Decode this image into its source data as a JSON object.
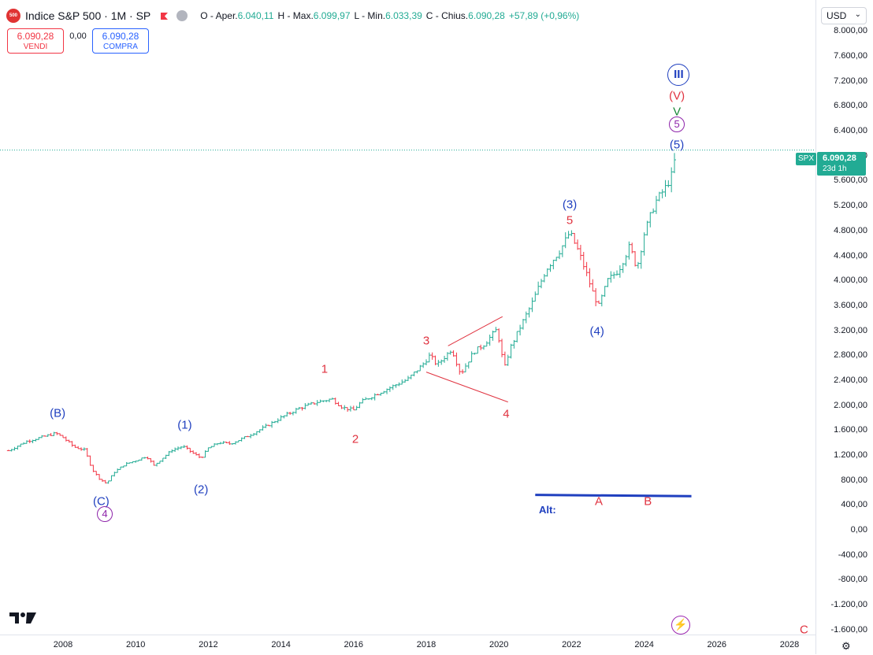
{
  "header": {
    "logo_text": "500",
    "title": "Indice S&P 500 · 1M · SP",
    "ohlc": [
      {
        "label": "O - Aper.",
        "value": "6.040,11"
      },
      {
        "label": "H - Max.",
        "value": "6.099,97"
      },
      {
        "label": "L - Min.",
        "value": "6.033,39"
      },
      {
        "label": "C - Chius.",
        "value": "6.090,28"
      }
    ],
    "change": "+57,89 (+0,96%)",
    "colors": {
      "up": "#22ab94",
      "down": "#f23645",
      "text": "#131722"
    }
  },
  "trade": {
    "sell_price": "6.090,28",
    "sell_label": "VENDI",
    "spread": "0,00",
    "buy_price": "6.090,28",
    "buy_label": "COMPRA"
  },
  "price_axis": {
    "currency": "USD",
    "ticks": [
      "8.000,00",
      "7.600,00",
      "7.200,00",
      "6.800,00",
      "6.400,00",
      "6.000,00",
      "5.600,00",
      "5.200,00",
      "4.800,00",
      "4.400,00",
      "4.000,00",
      "3.600,00",
      "3.200,00",
      "2.800,00",
      "2.400,00",
      "2.000,00",
      "1.600,00",
      "1.200,00",
      "800,00",
      "400,00",
      "0,00",
      "-400,00",
      "-800,00",
      "-1.200,00",
      "-1.600,00"
    ],
    "ticker_tag": "SPX",
    "last_price": "6.090,28",
    "countdown": "23d 1h"
  },
  "time_axis": {
    "ticks": [
      "2008",
      "2010",
      "2012",
      "2014",
      "2016",
      "2018",
      "2020",
      "2022",
      "2024",
      "2026",
      "2028"
    ]
  },
  "chart_data": {
    "type": "bar",
    "description_kind": "monthly OHLC price bars",
    "x_range": [
      2006.5,
      2028.8
    ],
    "ylim": [
      -1700,
      8300
    ],
    "close_series": [
      [
        2006.5,
        1270
      ],
      [
        2007.0,
        1420
      ],
      [
        2007.5,
        1500
      ],
      [
        2007.8,
        1550
      ],
      [
        2008.0,
        1480
      ],
      [
        2008.3,
        1330
      ],
      [
        2008.6,
        1280
      ],
      [
        2008.8,
        970
      ],
      [
        2009.0,
        820
      ],
      [
        2009.2,
        740
      ],
      [
        2009.4,
        920
      ],
      [
        2009.7,
        1050
      ],
      [
        2010.0,
        1110
      ],
      [
        2010.3,
        1180
      ],
      [
        2010.5,
        1030
      ],
      [
        2010.8,
        1180
      ],
      [
        2011.0,
        1280
      ],
      [
        2011.3,
        1340
      ],
      [
        2011.6,
        1220
      ],
      [
        2011.8,
        1150
      ],
      [
        2012.0,
        1310
      ],
      [
        2012.3,
        1400
      ],
      [
        2012.6,
        1380
      ],
      [
        2013.0,
        1480
      ],
      [
        2013.5,
        1630
      ],
      [
        2014.0,
        1800
      ],
      [
        2014.5,
        1950
      ],
      [
        2015.0,
        2050
      ],
      [
        2015.4,
        2100
      ],
      [
        2015.7,
        1960
      ],
      [
        2016.0,
        1920
      ],
      [
        2016.2,
        2050
      ],
      [
        2016.6,
        2170
      ],
      [
        2017.0,
        2280
      ],
      [
        2017.5,
        2420
      ],
      [
        2017.9,
        2650
      ],
      [
        2018.1,
        2800
      ],
      [
        2018.3,
        2640
      ],
      [
        2018.7,
        2900
      ],
      [
        2018.95,
        2500
      ],
      [
        2019.3,
        2850
      ],
      [
        2019.6,
        2980
      ],
      [
        2019.95,
        3220
      ],
      [
        2020.15,
        2580
      ],
      [
        2020.3,
        2900
      ],
      [
        2020.6,
        3270
      ],
      [
        2020.9,
        3620
      ],
      [
        2021.3,
        4180
      ],
      [
        2021.7,
        4500
      ],
      [
        2021.95,
        4770
      ],
      [
        2022.2,
        4450
      ],
      [
        2022.4,
        4130
      ],
      [
        2022.6,
        3780
      ],
      [
        2022.75,
        3590
      ],
      [
        2023.0,
        4000
      ],
      [
        2023.3,
        4170
      ],
      [
        2023.6,
        4550
      ],
      [
        2023.8,
        4190
      ],
      [
        2024.0,
        4750
      ],
      [
        2024.3,
        5250
      ],
      [
        2024.6,
        5500
      ],
      [
        2024.75,
        5680
      ],
      [
        2024.9,
        6090
      ]
    ],
    "triangle": {
      "upper": [
        [
          2018.6,
          2950
        ],
        [
          2020.1,
          3420
        ]
      ],
      "lower": [
        [
          2018.0,
          2530
        ],
        [
          2020.25,
          2050
        ]
      ]
    },
    "alt_line": {
      "x": [
        2021.0,
        2025.3
      ],
      "y": [
        560,
        540
      ]
    },
    "last_price": 6090.28
  },
  "annotations": {
    "waves": [
      {
        "text": "(B)",
        "color": "blue",
        "x": 2007.85,
        "y": 1870
      },
      {
        "text": "(C)",
        "color": "blue",
        "x": 2009.05,
        "y": 450
      },
      {
        "text": "(1)",
        "color": "blue",
        "x": 2011.35,
        "y": 1680
      },
      {
        "text": "(2)",
        "color": "blue",
        "x": 2011.8,
        "y": 650
      },
      {
        "text": "1",
        "color": "red",
        "x": 2015.2,
        "y": 2570
      },
      {
        "text": "2",
        "color": "red",
        "x": 2016.05,
        "y": 1450
      },
      {
        "text": "3",
        "color": "red",
        "x": 2018.0,
        "y": 3030
      },
      {
        "text": "4",
        "color": "red",
        "x": 2020.2,
        "y": 1860
      },
      {
        "text": "(3)",
        "color": "blue",
        "x": 2021.95,
        "y": 5220
      },
      {
        "text": "5",
        "color": "red",
        "x": 2021.95,
        "y": 4960
      },
      {
        "text": "(4)",
        "color": "blue",
        "x": 2022.7,
        "y": 3180
      },
      {
        "text": "(V)",
        "color": "red",
        "x": 2024.9,
        "y": 6960
      },
      {
        "text": "V",
        "color": "green",
        "x": 2024.9,
        "y": 6700
      },
      {
        "text": "(5)",
        "color": "blue",
        "x": 2024.9,
        "y": 6170
      },
      {
        "text": "A",
        "color": "red",
        "x": 2022.75,
        "y": 450
      },
      {
        "text": "B",
        "color": "red",
        "x": 2024.1,
        "y": 450
      },
      {
        "text": "C",
        "color": "red",
        "x": 2028.4,
        "y": -1600
      }
    ],
    "circled": [
      {
        "text": "4",
        "x": 2009.15,
        "y": 250,
        "color": "#8e24aa",
        "size": 20
      },
      {
        "text": "5",
        "x": 2024.9,
        "y": 6500,
        "color": "#8e24aa",
        "size": 20
      },
      {
        "text": "III",
        "x": 2024.95,
        "y": 7300,
        "color": "#1f3fbf",
        "size": 28
      }
    ],
    "alt_label": "Alt:"
  }
}
